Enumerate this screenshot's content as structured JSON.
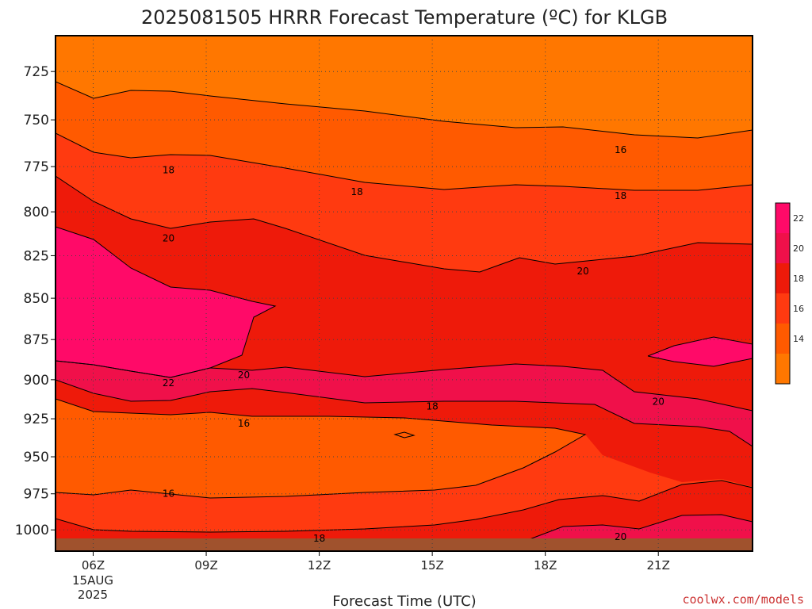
{
  "chart_data": {
    "type": "contour",
    "title": "2025081505 HRRR Forecast Temperature (ºC) for KLGB",
    "xlabel": "Forecast Time (UTC)",
    "ylabel": "",
    "x_ticks": [
      "06Z",
      "09Z",
      "12Z",
      "15Z",
      "18Z",
      "21Z"
    ],
    "x_hours": [
      6,
      9,
      12,
      15,
      18,
      21
    ],
    "x_range_hours": [
      5,
      23.5
    ],
    "date_label_line1": "15AUG",
    "date_label_line2": "2025",
    "y_ticks": [
      725,
      750,
      775,
      800,
      825,
      850,
      875,
      900,
      925,
      950,
      975,
      1000
    ],
    "y_range_hPa": [
      707,
      1015
    ],
    "y_scale": "pressure (log)",
    "y_inverted": true,
    "grid": "dotted",
    "contour_interval_C": 2,
    "fill_colors": {
      "12": "#ff7700",
      "14": "#ff5a00",
      "16": "#ff3a10",
      "18": "#ee1a0a",
      "20": "#f0104a",
      "22": "#ff0a68"
    },
    "ground_color": "#a0522d",
    "colorbar": {
      "labels": [
        "22",
        "20",
        "18",
        "16",
        "14"
      ],
      "colors": [
        "#ff0a68",
        "#f0104a",
        "#ee1a0a",
        "#ff3a10",
        "#ff5a00",
        "#ff7700"
      ]
    },
    "contour_labels": [
      {
        "text": "18",
        "hour": 8.0,
        "p": 777
      },
      {
        "text": "18",
        "hour": 13.0,
        "p": 789
      },
      {
        "text": "18",
        "hour": 20.0,
        "p": 791
      },
      {
        "text": "16",
        "hour": 20.0,
        "p": 766
      },
      {
        "text": "20",
        "hour": 8.0,
        "p": 815
      },
      {
        "text": "20",
        "hour": 19.0,
        "p": 834
      },
      {
        "text": "22",
        "hour": 8.0,
        "p": 902
      },
      {
        "text": "20",
        "hour": 10.0,
        "p": 897
      },
      {
        "text": "20",
        "hour": 21.0,
        "p": 914
      },
      {
        "text": "18",
        "hour": 15.0,
        "p": 917
      },
      {
        "text": "16",
        "hour": 10.0,
        "p": 928
      },
      {
        "text": "16",
        "hour": 8.0,
        "p": 975
      },
      {
        "text": "18",
        "hour": 12.0,
        "p": 1006
      },
      {
        "text": "20",
        "hour": 20.0,
        "p": 1005
      }
    ]
  },
  "credit": "coolwx.com/models",
  "credit_color": "#cc3333"
}
